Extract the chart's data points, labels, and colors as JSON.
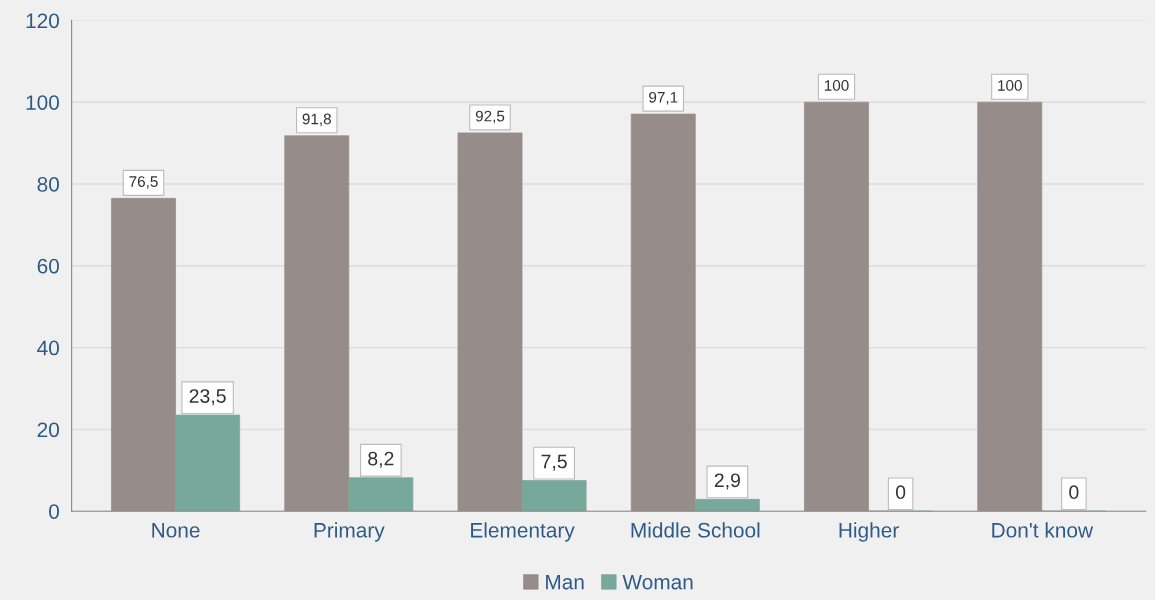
{
  "chart_data": {
    "type": "bar",
    "categories": [
      "None",
      "Primary",
      "Elementary",
      "Middle School",
      "Higher",
      "Don't know"
    ],
    "series": [
      {
        "name": "Man",
        "color": "#968c8a",
        "values": [
          76.5,
          91.8,
          92.5,
          97.1,
          100,
          100
        ],
        "value_labels": [
          "76,5",
          "91,8",
          "92,5",
          "97,1",
          "100",
          "100"
        ]
      },
      {
        "name": "Woman",
        "color": "#78a89a",
        "values": [
          23.5,
          8.2,
          7.5,
          2.9,
          0,
          0
        ],
        "value_labels": [
          "23,5",
          "8,2",
          "7,5",
          "2,9",
          "0",
          "0"
        ]
      }
    ],
    "ylim": [
      0,
      120
    ],
    "yticks": [
      0,
      20,
      40,
      60,
      80,
      100,
      120
    ],
    "grid": "y",
    "legend": "bottom"
  }
}
